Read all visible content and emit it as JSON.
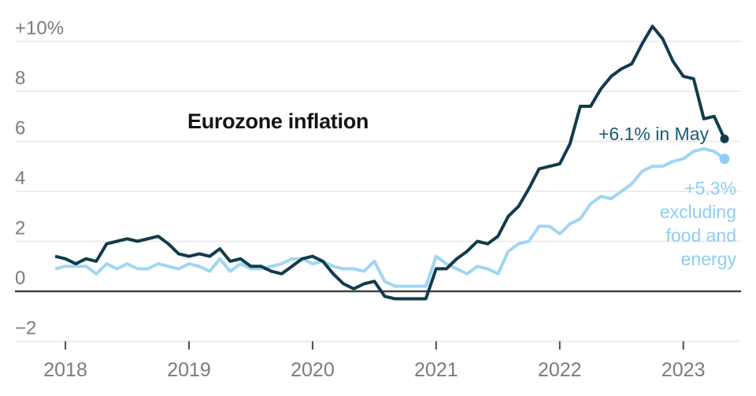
{
  "title": {
    "text": "Eurozone inflation"
  },
  "annotations": {
    "headline_label": "+6.1% in May",
    "core_label_lines": [
      "+5.3%",
      "excluding",
      "food and",
      "energy"
    ]
  },
  "colors": {
    "headline_line": "#113c4d",
    "headline_dot": "#113c4d",
    "headline_text": "#1a5a73",
    "core_line": "#a0d6f3",
    "core_dot": "#8fcff2",
    "core_text": "#8ecdf0",
    "grid": "#e7e7e7",
    "zero_axis": "#424242",
    "tick": "#4d4d4d",
    "axis_label": "#7b7b7b",
    "title_text": "#141414"
  },
  "chart_data": {
    "type": "line",
    "title": "Eurozone inflation",
    "x_unit": "month",
    "x_range": [
      "2017-12",
      "2023-05"
    ],
    "x_tick_labels": [
      "2018",
      "2019",
      "2020",
      "2021",
      "2022",
      "2023"
    ],
    "x_tick_month_indices": [
      1,
      13,
      25,
      37,
      49,
      61
    ],
    "y_gridline_values": [
      10,
      8,
      6,
      4,
      2,
      0,
      -2
    ],
    "y_tick_labels": [
      "+10%",
      "8",
      "6",
      "4",
      "2",
      "0",
      "−2"
    ],
    "ylim": [
      -2.9,
      11.2
    ],
    "grid": true,
    "legend_position": "right-annotations",
    "series": [
      {
        "name": "Eurozone inflation",
        "color_key": "headline",
        "end_label": "+6.1% in May",
        "values": [
          1.4,
          1.3,
          1.1,
          1.3,
          1.2,
          1.9,
          2.0,
          2.1,
          2.0,
          2.1,
          2.2,
          1.9,
          1.5,
          1.4,
          1.5,
          1.4,
          1.7,
          1.2,
          1.3,
          1.0,
          1.0,
          0.8,
          0.7,
          1.0,
          1.3,
          1.4,
          1.2,
          0.7,
          0.3,
          0.1,
          0.3,
          0.4,
          -0.2,
          -0.3,
          -0.3,
          -0.3,
          -0.3,
          0.9,
          0.9,
          1.3,
          1.6,
          2.0,
          1.9,
          2.2,
          3.0,
          3.4,
          4.1,
          4.9,
          5.0,
          5.1,
          5.9,
          7.4,
          7.4,
          8.1,
          8.6,
          8.9,
          9.1,
          9.9,
          10.6,
          10.1,
          9.2,
          8.6,
          8.5,
          6.9,
          7.0,
          6.1
        ]
      },
      {
        "name": "Inflation excluding food and energy",
        "color_key": "core",
        "end_label": "+5.3% excluding food and energy",
        "values": [
          0.9,
          1.0,
          1.0,
          1.0,
          0.7,
          1.1,
          0.9,
          1.1,
          0.9,
          0.9,
          1.1,
          1.0,
          0.9,
          1.1,
          1.0,
          0.8,
          1.3,
          0.8,
          1.1,
          0.9,
          0.9,
          1.0,
          1.1,
          1.3,
          1.3,
          1.1,
          1.2,
          1.0,
          0.9,
          0.9,
          0.8,
          1.2,
          0.4,
          0.2,
          0.2,
          0.2,
          0.2,
          1.4,
          1.1,
          0.9,
          0.7,
          1.0,
          0.9,
          0.7,
          1.6,
          1.9,
          2.0,
          2.6,
          2.6,
          2.3,
          2.7,
          2.9,
          3.5,
          3.8,
          3.7,
          4.0,
          4.3,
          4.8,
          5.0,
          5.0,
          5.2,
          5.3,
          5.6,
          5.7,
          5.6,
          5.3
        ]
      }
    ]
  }
}
